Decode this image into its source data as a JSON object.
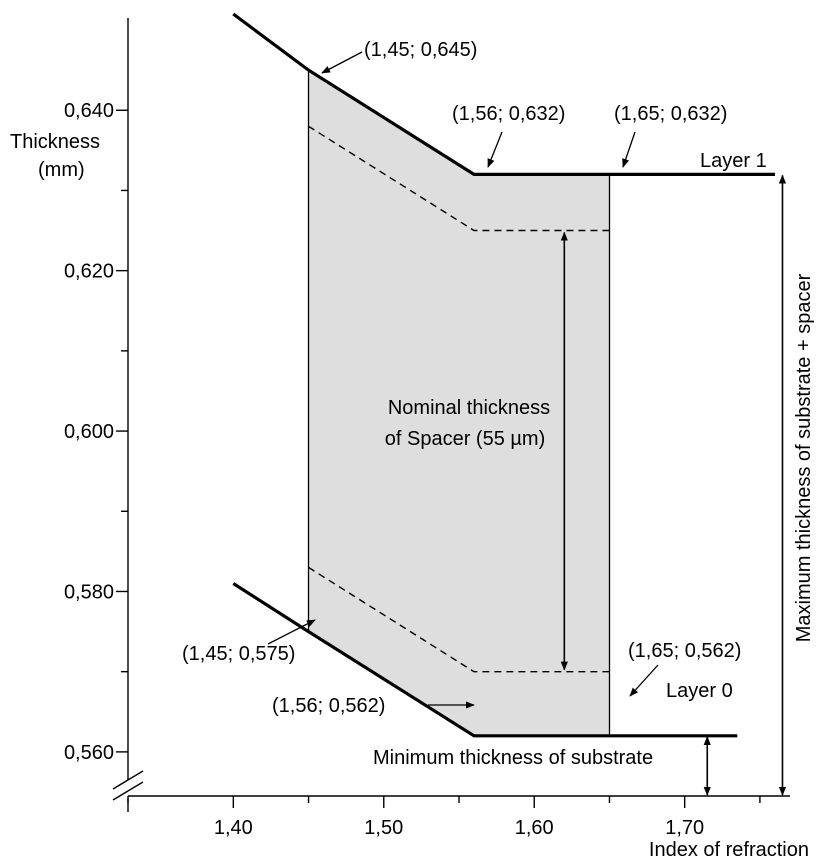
{
  "chart_data": {
    "type": "line",
    "xlabel": "Index of refraction",
    "ylabel_line1": "Thickness",
    "ylabel_line2": "(mm)",
    "xlim": [
      1.33,
      1.77
    ],
    "ylim": [
      0.5545,
      0.6515
    ],
    "x_ticks": [
      "1,40",
      "1,50",
      "1,60",
      "1,70"
    ],
    "x_tick_values": [
      1.4,
      1.5,
      1.6,
      1.7
    ],
    "y_ticks": [
      "0,560",
      "0,580",
      "0,600",
      "0,620",
      "0,640"
    ],
    "y_tick_values": [
      0.56,
      0.58,
      0.6,
      0.62,
      0.64
    ],
    "y_minor_tick_values": [
      0.57,
      0.59,
      0.61,
      0.63
    ],
    "x_minor_tick_values": [
      1.45,
      1.55,
      1.65,
      1.75
    ],
    "axis_break": true,
    "grid": false,
    "series": [
      {
        "name": "Layer 1",
        "x": [
          1.4,
          1.45,
          1.56,
          1.65,
          1.76
        ],
        "y": [
          0.652,
          0.645,
          0.632,
          0.632,
          0.632
        ]
      },
      {
        "name": "Layer 0",
        "x": [
          1.4,
          1.45,
          1.56,
          1.65,
          1.735
        ],
        "y": [
          0.581,
          0.575,
          0.562,
          0.562,
          0.562
        ]
      }
    ],
    "dashed_series": [
      {
        "x": [
          1.45,
          1.56,
          1.65
        ],
        "y": [
          0.638,
          0.625,
          0.625
        ]
      },
      {
        "x": [
          1.45,
          1.56,
          1.65
        ],
        "y": [
          0.583,
          0.57,
          0.57
        ]
      }
    ],
    "shaded_region": {
      "x_range": [
        1.45,
        1.65
      ],
      "upper": {
        "x": [
          1.45,
          1.56,
          1.65
        ],
        "y": [
          0.645,
          0.632,
          0.632
        ]
      },
      "lower": {
        "x": [
          1.45,
          1.56,
          1.65
        ],
        "y": [
          0.575,
          0.562,
          0.562
        ]
      },
      "color": "#dedede"
    },
    "point_annotations": [
      "(1,45; 0,645)",
      "(1,56; 0,632)",
      "(1,65; 0,632)",
      "(1,45; 0,575)",
      "(1,56; 0,562)",
      "(1,65; 0,562)"
    ],
    "annotations": {
      "layer1": "Layer 1",
      "layer0": "Layer 0",
      "nominal_line1": "Nominal thickness",
      "nominal_line2": "of Spacer (55 µm)",
      "min_substrate": "Minimum thickness of substrate",
      "max_substrate": "Maximum thickness of substrate + spacer"
    },
    "arrows": {
      "nominal": {
        "x": 1.62,
        "y": [
          0.625,
          0.57
        ]
      },
      "min_substrate": {
        "x": 1.715,
        "y": [
          0.562,
          0.5545
        ]
      },
      "max_substrate": {
        "x": 1.765,
        "y": [
          0.632,
          0.5545
        ]
      }
    }
  }
}
